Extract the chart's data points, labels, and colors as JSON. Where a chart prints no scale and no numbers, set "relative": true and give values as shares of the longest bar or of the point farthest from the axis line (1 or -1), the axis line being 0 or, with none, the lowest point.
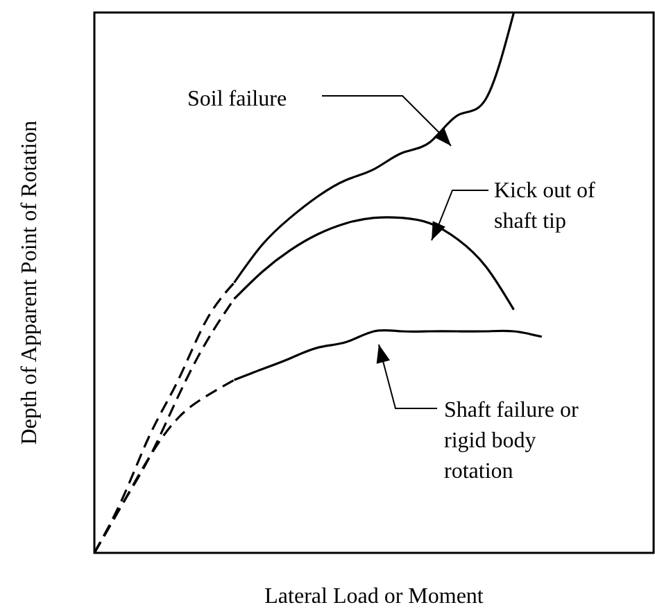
{
  "chart_data": {
    "type": "line",
    "relative": true,
    "xlabel": "Lateral Load or Moment",
    "ylabel": "Depth of Apparent Point of Rotation",
    "categories": [
      null,
      null,
      null,
      null,
      null,
      null,
      null,
      null,
      null,
      null,
      null,
      null,
      null,
      null,
      null,
      null,
      null,
      null,
      null,
      null,
      null
    ],
    "marker": "none",
    "series": [
      {
        "color": "#000000",
        "line_style": "dashed",
        "values": [
          0,
          0.1,
          0.22,
          0.32,
          0.43,
          0.5,
          null,
          null,
          null,
          null,
          null,
          null,
          null,
          null,
          null,
          null,
          null,
          null,
          null,
          null,
          null
        ]
      },
      {
        "color": "#000000",
        "line_style": "solid",
        "values": [
          null,
          null,
          null,
          null,
          null,
          0.5,
          0.57,
          0.62,
          0.66,
          0.69,
          0.71,
          0.74,
          0.76,
          0.81,
          0.84,
          1.0,
          null,
          null,
          null,
          null,
          null
        ]
      },
      {
        "color": "#000000",
        "line_style": "dashed",
        "values": [
          0,
          0.09,
          0.18,
          0.29,
          0.39,
          0.47,
          null,
          null,
          null,
          null,
          null,
          null,
          null,
          null,
          null,
          null,
          null,
          null,
          null,
          null,
          null
        ]
      },
      {
        "color": "#000000",
        "line_style": "solid",
        "values": [
          null,
          null,
          null,
          null,
          null,
          0.47,
          0.52,
          0.56,
          0.59,
          0.61,
          0.62,
          0.62,
          0.61,
          0.58,
          0.53,
          0.45,
          null,
          null,
          null,
          null,
          null
        ]
      },
      {
        "color": "#000000",
        "line_style": "dashed",
        "values": [
          0,
          0.09,
          0.18,
          0.25,
          0.29,
          0.32,
          null,
          null,
          null,
          null,
          null,
          null,
          null,
          null,
          null,
          null,
          null,
          null,
          null,
          null,
          null
        ]
      },
      {
        "color": "#000000",
        "line_style": "solid",
        "values": [
          null,
          null,
          null,
          null,
          null,
          0.32,
          0.34,
          0.36,
          0.38,
          0.39,
          0.41,
          0.41,
          0.41,
          0.41,
          0.41,
          0.41,
          0.4,
          null,
          null,
          null,
          null
        ]
      }
    ],
    "annotations": [
      "Soil failure",
      "Kick out of shaft tip",
      "Shaft failure or rigid body rotation"
    ]
  }
}
